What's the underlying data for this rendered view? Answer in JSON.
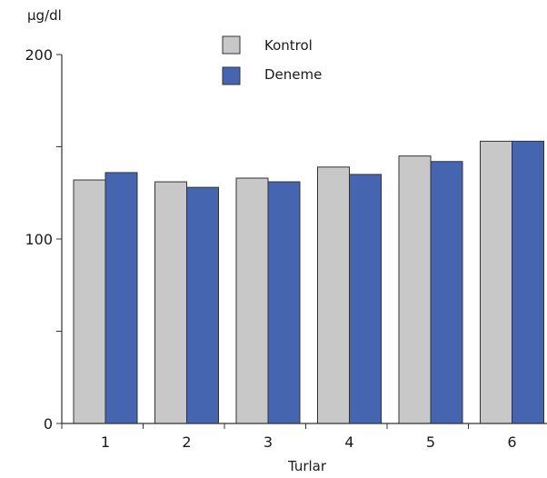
{
  "chart_data": {
    "type": "bar",
    "categories": [
      "1",
      "2",
      "3",
      "4",
      "5",
      "6"
    ],
    "series": [
      {
        "name": "Kontrol",
        "values": [
          132,
          131,
          133,
          139,
          145,
          153
        ],
        "color": "#c8c8c8"
      },
      {
        "name": "Deneme",
        "values": [
          136,
          128,
          131,
          135,
          142,
          153
        ],
        "color": "#4565b0"
      }
    ],
    "title": "",
    "ylabel": "µg/dl",
    "xlabel": "Turlar",
    "ylim": [
      0,
      200
    ],
    "y_ticks": [
      "0",
      "100",
      "200"
    ],
    "legend_position": "top-center",
    "grid": false
  }
}
